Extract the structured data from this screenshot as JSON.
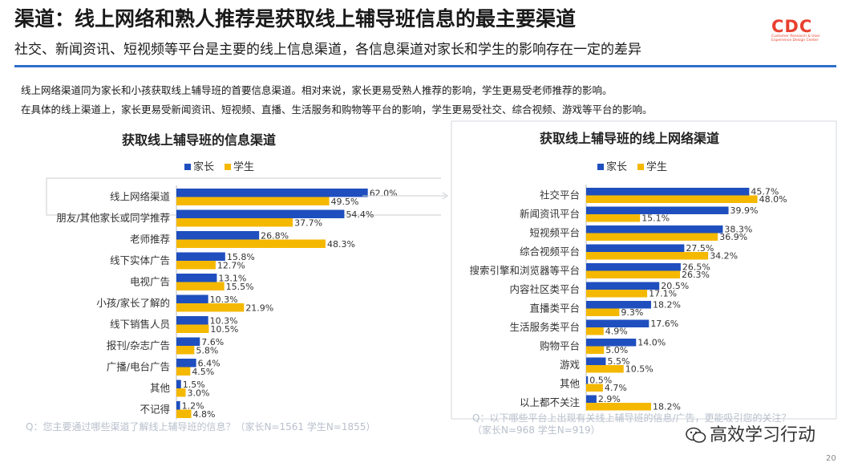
{
  "header": {
    "title": "渠道：线上网络和熟人推荐是获取线上辅导班信息的最主要渠道",
    "subtitle": "社交、新闻资讯、短视频等平台是主要的线上信息渠道，各信息渠道对家长和学生的影响存在一定的差异",
    "logo_text": "CDC",
    "logo_sub": "Customer Research & User Experience Design Center"
  },
  "description": [
    "线上网络渠道同为家长和小孩获取线上辅导班的首要信息渠道。相对来说，家长更易受熟人推荐的影响，学生更易受老师推荐的影响。",
    "在具体的线上渠道上，家长更易受新闻资讯、短视频、直播、生活服务和购物等平台的影响，学生更易受社交、综合视频、游戏等平台的影响。"
  ],
  "colors": {
    "parent": "#1f4fbf",
    "student": "#f5b800"
  },
  "chart_data": [
    {
      "type": "bar",
      "title": "获取线上辅导班的信息渠道",
      "orientation": "horizontal",
      "categories": [
        "线上网络渠道",
        "朋友/其他家长或同学推荐",
        "老师推荐",
        "线下实体广告",
        "电视广告",
        "小孩/家长了解的",
        "线下销售人员",
        "报刊/杂志广告",
        "广播/电台广告",
        "其他",
        "不记得"
      ],
      "series": [
        {
          "name": "家长",
          "values": [
            62.0,
            54.4,
            26.8,
            15.8,
            13.1,
            10.3,
            10.3,
            7.6,
            6.4,
            1.5,
            1.2
          ]
        },
        {
          "name": "学生",
          "values": [
            49.5,
            37.7,
            48.3,
            12.7,
            15.5,
            21.9,
            10.5,
            5.8,
            4.5,
            3.0,
            4.8
          ]
        }
      ],
      "value_format": "%",
      "legend": "top-center",
      "footnote": "Q：您主要通过哪些渠道了解线上辅导班的信息？（家长N=1561      学生N=1855）"
    },
    {
      "type": "bar",
      "title": "获取线上辅导班的线上网络渠道",
      "orientation": "horizontal",
      "categories": [
        "社交平台",
        "新闻资讯平台",
        "短视频平台",
        "综合视频平台",
        "搜索引擎和浏览器等平台",
        "内容社区类平台",
        "直播类平台",
        "生活服务类平台",
        "购物平台",
        "游戏",
        "其他",
        "以上都不关注"
      ],
      "series": [
        {
          "name": "家长",
          "values": [
            45.7,
            39.9,
            38.3,
            27.5,
            26.5,
            20.5,
            18.2,
            17.6,
            14.0,
            5.5,
            0.5,
            2.9
          ]
        },
        {
          "name": "学生",
          "values": [
            48.0,
            15.1,
            36.9,
            34.2,
            26.3,
            17.1,
            9.3,
            4.9,
            5.0,
            10.5,
            4.7,
            18.2
          ]
        }
      ],
      "value_format": "%",
      "legend": "top-center",
      "footnote": [
        "Q：以下哪些平台上出现有关线上辅导班的信息/广告，更能吸引您的关注？",
        "（家长N=968      学生N=919）"
      ]
    }
  ],
  "watermark": "高效学习行动",
  "page_number": "20"
}
